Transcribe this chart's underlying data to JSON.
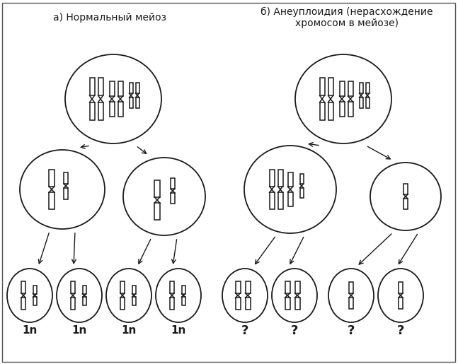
{
  "title_left": "а) Нормальный мейоз",
  "title_right": "б) Анеуплоидия (нерасхождение\nхромосом в мейозе)",
  "title_fontsize": 10,
  "label_fontsize": 11,
  "bg_color": "#ffffff",
  "line_color": "#1a1a1a",
  "labels_left": [
    "1n",
    "1n",
    "1n",
    "1n"
  ],
  "labels_right": [
    "?",
    "?",
    "?",
    "?"
  ],
  "figsize": [
    6.47,
    5.15
  ],
  "dpi": 100
}
